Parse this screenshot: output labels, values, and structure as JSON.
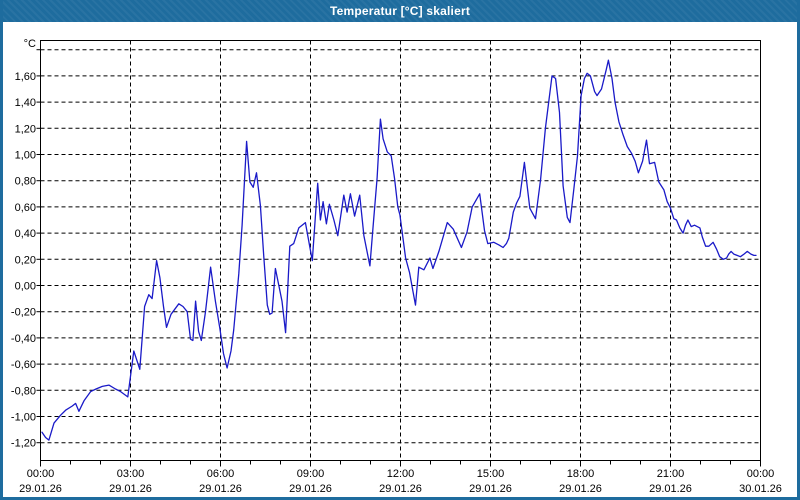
{
  "window": {
    "title": "Temperatur [°C] skaliert",
    "titlebar_color": "#1E6C9E",
    "frame_color": "#1E6C9E",
    "background": "#FFFFFF"
  },
  "chart_data": {
    "type": "line",
    "title": "Temperatur [°C] skaliert",
    "xlabel": "",
    "ylabel": "°C",
    "line_color": "#1A1AC8",
    "grid": "dashed-black",
    "legend": "none",
    "ylim": [
      -1.34,
      1.88
    ],
    "xlim_hours": [
      0,
      24
    ],
    "x_major_tick_every_hours": 3,
    "x_minor_tick_every_hours": 1,
    "y_gridlines": [
      1.8,
      1.6,
      1.4,
      1.2,
      1.0,
      0.8,
      0.6,
      0.4,
      0.2,
      0.0,
      -0.2,
      -0.4,
      -0.6,
      -0.8,
      -1.0,
      -1.2
    ],
    "y_ticks": [
      {
        "value": 1.6,
        "label": "1,60"
      },
      {
        "value": 1.4,
        "label": "1,40"
      },
      {
        "value": 1.2,
        "label": "1,20"
      },
      {
        "value": 1.0,
        "label": "1,00"
      },
      {
        "value": 0.8,
        "label": "0,80"
      },
      {
        "value": 0.6,
        "label": "0,60"
      },
      {
        "value": 0.4,
        "label": "0,40"
      },
      {
        "value": 0.2,
        "label": "0,20"
      },
      {
        "value": 0.0,
        "label": "0,00"
      },
      {
        "value": -0.2,
        "label": "-0,20"
      },
      {
        "value": -0.4,
        "label": "-0,40"
      },
      {
        "value": -0.6,
        "label": "-0,60"
      },
      {
        "value": -0.8,
        "label": "-0,80"
      },
      {
        "value": -1.0,
        "label": "-1,00"
      },
      {
        "value": -1.2,
        "label": "-1,20"
      }
    ],
    "x_ticks": [
      {
        "hour": 0,
        "time": "00:00",
        "date": "29.01.26"
      },
      {
        "hour": 3,
        "time": "03:00",
        "date": "29.01.26"
      },
      {
        "hour": 6,
        "time": "06:00",
        "date": "29.01.26"
      },
      {
        "hour": 9,
        "time": "09:00",
        "date": "29.01.26"
      },
      {
        "hour": 12,
        "time": "12:00",
        "date": "29.01.26"
      },
      {
        "hour": 15,
        "time": "15:00",
        "date": "29.01.26"
      },
      {
        "hour": 18,
        "time": "18:00",
        "date": "29.01.26"
      },
      {
        "hour": 21,
        "time": "21:00",
        "date": "29.01.26"
      },
      {
        "hour": 24,
        "time": "00:00",
        "date": "30.01.26"
      }
    ],
    "points": [
      [
        0.05,
        -1.12
      ],
      [
        0.17,
        -1.16
      ],
      [
        0.28,
        -1.18
      ],
      [
        0.45,
        -1.05
      ],
      [
        0.67,
        -0.99
      ],
      [
        0.85,
        -0.95
      ],
      [
        1.06,
        -0.92
      ],
      [
        1.17,
        -0.9
      ],
      [
        1.28,
        -0.96
      ],
      [
        1.45,
        -0.88
      ],
      [
        1.67,
        -0.81
      ],
      [
        1.85,
        -0.79
      ],
      [
        2.06,
        -0.77
      ],
      [
        2.28,
        -0.76
      ],
      [
        2.5,
        -0.79
      ],
      [
        2.67,
        -0.81
      ],
      [
        2.91,
        -0.85
      ],
      [
        3.11,
        -0.5
      ],
      [
        3.31,
        -0.64
      ],
      [
        3.47,
        -0.16
      ],
      [
        3.61,
        -0.07
      ],
      [
        3.72,
        -0.1
      ],
      [
        3.87,
        0.19
      ],
      [
        3.98,
        0.06
      ],
      [
        4.1,
        -0.16
      ],
      [
        4.2,
        -0.32
      ],
      [
        4.35,
        -0.22
      ],
      [
        4.61,
        -0.14
      ],
      [
        4.75,
        -0.16
      ],
      [
        4.89,
        -0.2
      ],
      [
        5.0,
        -0.41
      ],
      [
        5.08,
        -0.42
      ],
      [
        5.17,
        -0.12
      ],
      [
        5.27,
        -0.35
      ],
      [
        5.36,
        -0.42
      ],
      [
        5.5,
        -0.2
      ],
      [
        5.67,
        0.14
      ],
      [
        5.83,
        -0.12
      ],
      [
        5.98,
        -0.33
      ],
      [
        6.1,
        -0.52
      ],
      [
        6.22,
        -0.63
      ],
      [
        6.35,
        -0.5
      ],
      [
        6.44,
        -0.34
      ],
      [
        6.61,
        0.09
      ],
      [
        6.72,
        0.46
      ],
      [
        6.87,
        1.1
      ],
      [
        6.98,
        0.79
      ],
      [
        7.09,
        0.75
      ],
      [
        7.2,
        0.86
      ],
      [
        7.33,
        0.61
      ],
      [
        7.44,
        0.23
      ],
      [
        7.56,
        -0.15
      ],
      [
        7.64,
        -0.22
      ],
      [
        7.72,
        -0.21
      ],
      [
        7.83,
        0.13
      ],
      [
        7.98,
        -0.04
      ],
      [
        8.05,
        -0.12
      ],
      [
        8.17,
        -0.36
      ],
      [
        8.31,
        0.3
      ],
      [
        8.44,
        0.32
      ],
      [
        8.61,
        0.44
      ],
      [
        8.83,
        0.48
      ],
      [
        9.06,
        0.19
      ],
      [
        9.24,
        0.78
      ],
      [
        9.33,
        0.5
      ],
      [
        9.42,
        0.64
      ],
      [
        9.53,
        0.47
      ],
      [
        9.63,
        0.62
      ],
      [
        9.78,
        0.5
      ],
      [
        9.91,
        0.38
      ],
      [
        10.11,
        0.69
      ],
      [
        10.22,
        0.56
      ],
      [
        10.33,
        0.7
      ],
      [
        10.47,
        0.53
      ],
      [
        10.64,
        0.69
      ],
      [
        10.78,
        0.38
      ],
      [
        10.98,
        0.15
      ],
      [
        11.09,
        0.46
      ],
      [
        11.22,
        0.82
      ],
      [
        11.33,
        1.27
      ],
      [
        11.42,
        1.12
      ],
      [
        11.56,
        1.02
      ],
      [
        11.69,
        0.99
      ],
      [
        11.8,
        0.82
      ],
      [
        11.91,
        0.6
      ],
      [
        11.98,
        0.54
      ],
      [
        12.17,
        0.21
      ],
      [
        12.3,
        0.1
      ],
      [
        12.42,
        -0.05
      ],
      [
        12.5,
        -0.15
      ],
      [
        12.61,
        0.14
      ],
      [
        12.78,
        0.12
      ],
      [
        12.98,
        0.21
      ],
      [
        13.08,
        0.13
      ],
      [
        13.28,
        0.26
      ],
      [
        13.56,
        0.48
      ],
      [
        13.76,
        0.43
      ],
      [
        14.03,
        0.29
      ],
      [
        14.22,
        0.41
      ],
      [
        14.39,
        0.6
      ],
      [
        14.64,
        0.7
      ],
      [
        14.8,
        0.42
      ],
      [
        14.91,
        0.32
      ],
      [
        15.11,
        0.33
      ],
      [
        15.28,
        0.31
      ],
      [
        15.42,
        0.29
      ],
      [
        15.53,
        0.32
      ],
      [
        15.61,
        0.36
      ],
      [
        15.76,
        0.56
      ],
      [
        15.87,
        0.63
      ],
      [
        15.98,
        0.68
      ],
      [
        16.13,
        0.94
      ],
      [
        16.31,
        0.59
      ],
      [
        16.5,
        0.51
      ],
      [
        16.67,
        0.81
      ],
      [
        16.83,
        1.2
      ],
      [
        17.05,
        1.6
      ],
      [
        17.17,
        1.58
      ],
      [
        17.3,
        1.32
      ],
      [
        17.42,
        0.76
      ],
      [
        17.56,
        0.52
      ],
      [
        17.65,
        0.48
      ],
      [
        17.78,
        0.74
      ],
      [
        17.9,
        0.99
      ],
      [
        18.02,
        1.45
      ],
      [
        18.13,
        1.58
      ],
      [
        18.22,
        1.62
      ],
      [
        18.33,
        1.6
      ],
      [
        18.47,
        1.48
      ],
      [
        18.55,
        1.45
      ],
      [
        18.7,
        1.5
      ],
      [
        18.85,
        1.64
      ],
      [
        18.93,
        1.72
      ],
      [
        19.05,
        1.58
      ],
      [
        19.15,
        1.4
      ],
      [
        19.28,
        1.25
      ],
      [
        19.42,
        1.15
      ],
      [
        19.56,
        1.06
      ],
      [
        19.7,
        1.01
      ],
      [
        19.82,
        0.95
      ],
      [
        19.93,
        0.86
      ],
      [
        20.07,
        0.95
      ],
      [
        20.2,
        1.11
      ],
      [
        20.3,
        0.93
      ],
      [
        20.47,
        0.94
      ],
      [
        20.61,
        0.79
      ],
      [
        20.78,
        0.73
      ],
      [
        20.89,
        0.64
      ],
      [
        21.0,
        0.59
      ],
      [
        21.11,
        0.51
      ],
      [
        21.2,
        0.5
      ],
      [
        21.31,
        0.44
      ],
      [
        21.42,
        0.4
      ],
      [
        21.5,
        0.46
      ],
      [
        21.58,
        0.5
      ],
      [
        21.69,
        0.45
      ],
      [
        21.8,
        0.46
      ],
      [
        21.98,
        0.44
      ],
      [
        22.06,
        0.37
      ],
      [
        22.17,
        0.3
      ],
      [
        22.28,
        0.3
      ],
      [
        22.42,
        0.33
      ],
      [
        22.53,
        0.28
      ],
      [
        22.64,
        0.22
      ],
      [
        22.76,
        0.2
      ],
      [
        22.87,
        0.21
      ],
      [
        22.94,
        0.24
      ],
      [
        23.02,
        0.26
      ],
      [
        23.11,
        0.24
      ],
      [
        23.22,
        0.23
      ],
      [
        23.33,
        0.22
      ],
      [
        23.45,
        0.24
      ],
      [
        23.56,
        0.26
      ],
      [
        23.68,
        0.24
      ],
      [
        23.78,
        0.23
      ],
      [
        23.85,
        0.23
      ]
    ]
  }
}
